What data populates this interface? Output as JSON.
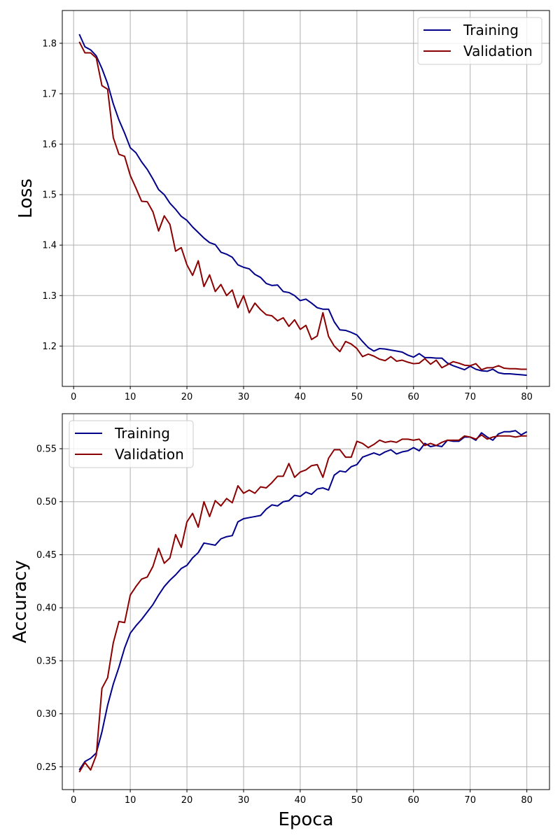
{
  "colors": {
    "training": "#00008b",
    "validation": "#8b0000",
    "grid": "#b0b0b0"
  },
  "chart_data": [
    {
      "type": "line",
      "title": "",
      "xlabel": "",
      "ylabel": "Loss",
      "xlim": [
        -2,
        84
      ],
      "ylim": [
        1.12,
        1.865
      ],
      "xticks": [
        0,
        10,
        20,
        30,
        40,
        50,
        60,
        70,
        80
      ],
      "yticks": [
        1.2,
        1.3,
        1.4,
        1.5,
        1.6,
        1.7,
        1.8
      ],
      "ytick_labels": [
        "1.2",
        "1.3",
        "1.4",
        "1.5",
        "1.6",
        "1.7",
        "1.8"
      ],
      "grid": true,
      "legend_position": "top-right",
      "series": [
        {
          "name": "Training",
          "color": "#00008b",
          "x": [
            1,
            2,
            3,
            4,
            5,
            6,
            7,
            8,
            9,
            10,
            11,
            12,
            13,
            14,
            15,
            16,
            17,
            18,
            19,
            20,
            21,
            22,
            23,
            24,
            25,
            26,
            27,
            28,
            29,
            30,
            31,
            32,
            33,
            34,
            35,
            36,
            37,
            38,
            39,
            40,
            41,
            42,
            43,
            44,
            45,
            46,
            47,
            48,
            49,
            50,
            51,
            52,
            53,
            54,
            55,
            56,
            57,
            58,
            59,
            60,
            61,
            62,
            63,
            64,
            65,
            66,
            67,
            68,
            69,
            70,
            71,
            72,
            73,
            74,
            75,
            76,
            77,
            78,
            79,
            80
          ],
          "values": [
            1.818,
            1.793,
            1.787,
            1.775,
            1.75,
            1.72,
            1.68,
            1.648,
            1.622,
            1.593,
            1.583,
            1.565,
            1.55,
            1.531,
            1.51,
            1.5,
            1.483,
            1.471,
            1.457,
            1.449,
            1.436,
            1.425,
            1.414,
            1.405,
            1.401,
            1.386,
            1.382,
            1.376,
            1.361,
            1.356,
            1.353,
            1.342,
            1.336,
            1.324,
            1.32,
            1.321,
            1.308,
            1.306,
            1.3,
            1.29,
            1.293,
            1.285,
            1.276,
            1.273,
            1.273,
            1.248,
            1.232,
            1.231,
            1.227,
            1.222,
            1.209,
            1.197,
            1.19,
            1.195,
            1.194,
            1.192,
            1.19,
            1.188,
            1.182,
            1.178,
            1.185,
            1.177,
            1.177,
            1.176,
            1.176,
            1.166,
            1.161,
            1.157,
            1.153,
            1.16,
            1.154,
            1.151,
            1.15,
            1.154,
            1.147,
            1.145,
            1.145,
            1.144,
            1.143,
            1.142
          ]
        },
        {
          "name": "Validation",
          "color": "#8b0000",
          "x": [
            1,
            2,
            3,
            4,
            5,
            6,
            7,
            8,
            9,
            10,
            11,
            12,
            13,
            14,
            15,
            16,
            17,
            18,
            19,
            20,
            21,
            22,
            23,
            24,
            25,
            26,
            27,
            28,
            29,
            30,
            31,
            32,
            33,
            34,
            35,
            36,
            37,
            38,
            39,
            40,
            41,
            42,
            43,
            44,
            45,
            46,
            47,
            48,
            49,
            50,
            51,
            52,
            53,
            54,
            55,
            56,
            57,
            58,
            59,
            60,
            61,
            62,
            63,
            64,
            65,
            66,
            67,
            68,
            69,
            70,
            71,
            72,
            73,
            74,
            75,
            76,
            77,
            78,
            79,
            80
          ],
          "values": [
            1.803,
            1.781,
            1.781,
            1.771,
            1.716,
            1.709,
            1.613,
            1.58,
            1.576,
            1.538,
            1.513,
            1.487,
            1.486,
            1.466,
            1.428,
            1.458,
            1.441,
            1.388,
            1.395,
            1.361,
            1.34,
            1.369,
            1.318,
            1.341,
            1.308,
            1.322,
            1.3,
            1.311,
            1.276,
            1.3,
            1.266,
            1.285,
            1.272,
            1.262,
            1.26,
            1.25,
            1.256,
            1.239,
            1.252,
            1.233,
            1.241,
            1.213,
            1.22,
            1.266,
            1.219,
            1.2,
            1.189,
            1.209,
            1.204,
            1.195,
            1.179,
            1.184,
            1.18,
            1.174,
            1.171,
            1.179,
            1.17,
            1.172,
            1.168,
            1.165,
            1.166,
            1.175,
            1.164,
            1.172,
            1.157,
            1.163,
            1.169,
            1.166,
            1.162,
            1.161,
            1.165,
            1.153,
            1.157,
            1.157,
            1.161,
            1.156,
            1.155,
            1.155,
            1.154,
            1.154
          ]
        }
      ]
    },
    {
      "type": "line",
      "title": "",
      "xlabel": "Epoca",
      "ylabel": "Accuracy",
      "xlim": [
        -2,
        84
      ],
      "ylim": [
        0.2285,
        0.583
      ],
      "xticks": [
        0,
        10,
        20,
        30,
        40,
        50,
        60,
        70,
        80
      ],
      "yticks": [
        0.25,
        0.3,
        0.35,
        0.4,
        0.45,
        0.5,
        0.55
      ],
      "ytick_labels": [
        "0.25",
        "0.30",
        "0.35",
        "0.40",
        "0.45",
        "0.50",
        "0.55"
      ],
      "grid": true,
      "legend_position": "top-left",
      "series": [
        {
          "name": "Training",
          "color": "#00008b",
          "x": [
            1,
            2,
            3,
            4,
            5,
            6,
            7,
            8,
            9,
            10,
            11,
            12,
            13,
            14,
            15,
            16,
            17,
            18,
            19,
            20,
            21,
            22,
            23,
            24,
            25,
            26,
            27,
            28,
            29,
            30,
            31,
            32,
            33,
            34,
            35,
            36,
            37,
            38,
            39,
            40,
            41,
            42,
            43,
            44,
            45,
            46,
            47,
            48,
            49,
            50,
            51,
            52,
            53,
            54,
            55,
            56,
            57,
            58,
            59,
            60,
            61,
            62,
            63,
            64,
            65,
            66,
            67,
            68,
            69,
            70,
            71,
            72,
            73,
            74,
            75,
            76,
            77,
            78,
            79,
            80
          ],
          "values": [
            0.247,
            0.255,
            0.258,
            0.263,
            0.283,
            0.308,
            0.328,
            0.344,
            0.362,
            0.376,
            0.383,
            0.389,
            0.396,
            0.403,
            0.412,
            0.42,
            0.426,
            0.431,
            0.437,
            0.44,
            0.447,
            0.452,
            0.461,
            0.46,
            0.459,
            0.465,
            0.467,
            0.468,
            0.481,
            0.484,
            0.485,
            0.486,
            0.487,
            0.493,
            0.497,
            0.496,
            0.5,
            0.501,
            0.506,
            0.505,
            0.509,
            0.507,
            0.512,
            0.513,
            0.511,
            0.525,
            0.529,
            0.528,
            0.533,
            0.535,
            0.542,
            0.544,
            0.546,
            0.544,
            0.547,
            0.549,
            0.545,
            0.547,
            0.548,
            0.551,
            0.548,
            0.555,
            0.552,
            0.553,
            0.552,
            0.558,
            0.557,
            0.557,
            0.561,
            0.561,
            0.558,
            0.565,
            0.561,
            0.558,
            0.564,
            0.566,
            0.566,
            0.567,
            0.563,
            0.566
          ]
        },
        {
          "name": "Validation",
          "color": "#8b0000",
          "x": [
            1,
            2,
            3,
            4,
            5,
            6,
            7,
            8,
            9,
            10,
            11,
            12,
            13,
            14,
            15,
            16,
            17,
            18,
            19,
            20,
            21,
            22,
            23,
            24,
            25,
            26,
            27,
            28,
            29,
            30,
            31,
            32,
            33,
            34,
            35,
            36,
            37,
            38,
            39,
            40,
            41,
            42,
            43,
            44,
            45,
            46,
            47,
            48,
            49,
            50,
            51,
            52,
            53,
            54,
            55,
            56,
            57,
            58,
            59,
            60,
            61,
            62,
            63,
            64,
            65,
            66,
            67,
            68,
            69,
            70,
            71,
            72,
            73,
            74,
            75,
            76,
            77,
            78,
            79,
            80
          ],
          "values": [
            0.245,
            0.254,
            0.247,
            0.261,
            0.324,
            0.334,
            0.367,
            0.387,
            0.386,
            0.412,
            0.42,
            0.427,
            0.429,
            0.439,
            0.456,
            0.442,
            0.447,
            0.469,
            0.457,
            0.481,
            0.489,
            0.476,
            0.5,
            0.486,
            0.501,
            0.496,
            0.503,
            0.499,
            0.515,
            0.508,
            0.511,
            0.508,
            0.514,
            0.513,
            0.518,
            0.524,
            0.524,
            0.536,
            0.523,
            0.528,
            0.53,
            0.534,
            0.535,
            0.523,
            0.541,
            0.549,
            0.549,
            0.542,
            0.542,
            0.557,
            0.555,
            0.551,
            0.554,
            0.558,
            0.556,
            0.557,
            0.556,
            0.559,
            0.559,
            0.558,
            0.559,
            0.553,
            0.555,
            0.553,
            0.556,
            0.558,
            0.558,
            0.558,
            0.562,
            0.561,
            0.559,
            0.563,
            0.559,
            0.561,
            0.562,
            0.562,
            0.562,
            0.561,
            0.562,
            0.562
          ]
        }
      ]
    }
  ]
}
